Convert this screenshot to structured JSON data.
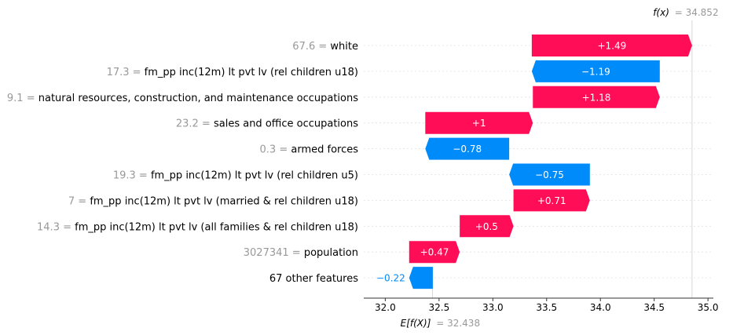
{
  "chart_data": {
    "type": "waterfall",
    "colors": {
      "positive": "#ff0d57",
      "negative": "#008bfb",
      "grid": "#cccccc",
      "axis": "#333333",
      "muted": "#999999"
    },
    "fx": {
      "label": "f(x)",
      "value_text": "= 34.852",
      "value": 34.852
    },
    "efx": {
      "label": "E[f(X)]",
      "value_text": "= 32.438",
      "value": 32.438
    },
    "xlim": [
      31.8,
      35.05
    ],
    "xticks": [
      {
        "value": 32.0,
        "label": "32.0"
      },
      {
        "value": 32.5,
        "label": "32.5"
      },
      {
        "value": 33.0,
        "label": "33.0"
      },
      {
        "value": 33.5,
        "label": "33.5"
      },
      {
        "value": 34.0,
        "label": "34.0"
      },
      {
        "value": 34.5,
        "label": "34.5"
      },
      {
        "value": 35.0,
        "label": "35.0"
      }
    ],
    "features": [
      {
        "value_text": "67.6",
        "name": "white",
        "contribution": 1.49,
        "start": 33.362,
        "label": "+1.49"
      },
      {
        "value_text": "17.3",
        "name": "fm_pp inc(12m) lt pvt lv (rel children u18)",
        "contribution": -1.19,
        "start": 34.552,
        "label": "−1.19"
      },
      {
        "value_text": "9.1",
        "name": "natural resources, construction, and maintenance occupations",
        "contribution": 1.18,
        "start": 33.372,
        "label": "+1.18"
      },
      {
        "value_text": "23.2",
        "name": "sales and office occupations",
        "contribution": 1.0,
        "start": 32.372,
        "label": "+1"
      },
      {
        "value_text": "0.3",
        "name": "armed forces",
        "contribution": -0.78,
        "start": 33.152,
        "label": "−0.78"
      },
      {
        "value_text": "19.3",
        "name": "fm_pp inc(12m) lt pvt lv (rel children u5)",
        "contribution": -0.75,
        "start": 33.902,
        "label": "−0.75"
      },
      {
        "value_text": "7",
        "name": "fm_pp inc(12m) lt pvt lv (married & rel children u18)",
        "contribution": 0.71,
        "start": 33.192,
        "label": "+0.71"
      },
      {
        "value_text": "14.3",
        "name": "fm_pp inc(12m) lt pvt lv (all families & rel children u18)",
        "contribution": 0.5,
        "start": 32.692,
        "label": "+0.5"
      },
      {
        "value_text": "3027341",
        "name": "population",
        "contribution": 0.47,
        "start": 32.222,
        "label": "+0.47"
      },
      {
        "value_text": "",
        "name": "67 other features",
        "contribution": -0.22,
        "start": 32.442,
        "label": "−0.22",
        "outside_label": true
      }
    ]
  }
}
